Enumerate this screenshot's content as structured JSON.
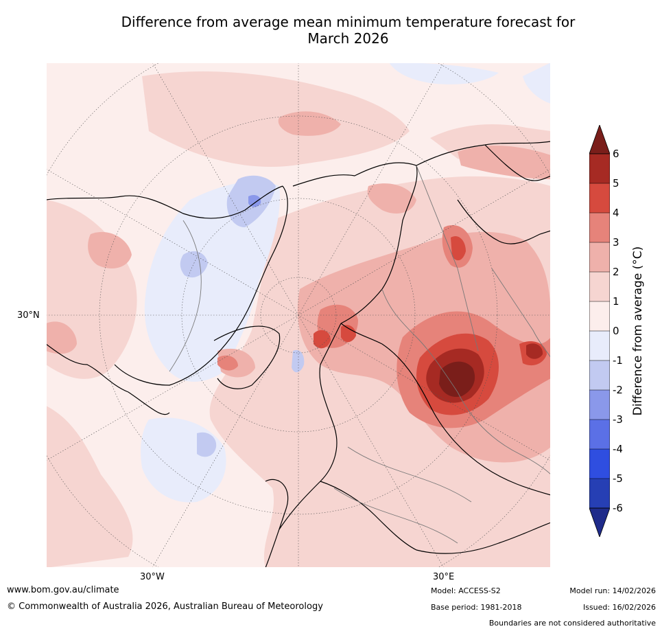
{
  "title_line1": "Difference from average mean minimum temperature forecast for",
  "title_line2": "March 2026",
  "map": {
    "lat_label": "30°N",
    "lon_label_west": "30°W",
    "lon_label_east": "30°E"
  },
  "colorbar": {
    "label": "Difference from average (°C)",
    "ticks": [
      "6",
      "5",
      "4",
      "3",
      "2",
      "1",
      "0",
      "-1",
      "-2",
      "-3",
      "-4",
      "-5",
      "-6"
    ],
    "colors": {
      "above_6": "#7a1e1a",
      "5_6": "#a62a23",
      "4_5": "#d64a3e",
      "3_4": "#e6837a",
      "2_3": "#efb1ab",
      "1_2": "#f6d5d1",
      "0_1": "#fceeec",
      "m1_0": "#e8ecfb",
      "m2_m1": "#c2caf1",
      "m3_m2": "#8a98ea",
      "m4_m3": "#5b70e6",
      "m5_m4": "#2f4ee0",
      "m6_m5": "#263fb4",
      "below_m6": "#1f2b8a"
    }
  },
  "footer": {
    "website": "www.bom.gov.au/climate",
    "copyright": "© Commonwealth of Australia 2026, Australian Bureau of Meteorology",
    "model": "Model: ACCESS-S2",
    "base_period": "Base period: 1981-2018",
    "model_run": "Model run: 14/02/2026",
    "issued": "Issued: 16/02/2026",
    "disclaimer": "Boundaries are not considered authoritative"
  }
}
